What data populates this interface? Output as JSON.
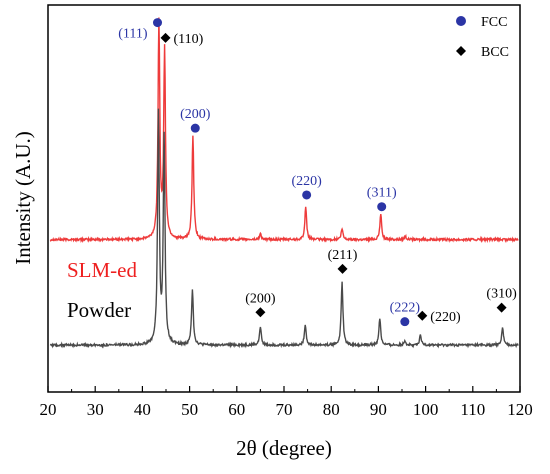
{
  "chart_data": {
    "type": "line",
    "xlabel": "2θ (degree)",
    "ylabel": "Intensity (A.U.)",
    "xlim": [
      20,
      120
    ],
    "x_ticks": [
      20,
      30,
      40,
      50,
      60,
      70,
      80,
      90,
      100,
      110,
      120
    ],
    "y_ticks_shown": false,
    "grid": false,
    "legend": {
      "placement": "top-right",
      "entries": [
        {
          "label": "FCC",
          "marker": "circle",
          "color": "#2b35a5"
        },
        {
          "label": "BCC",
          "marker": "diamond",
          "color": "#000000"
        }
      ]
    },
    "series": [
      {
        "name": "SLM-ed",
        "color": "#ee3b3b",
        "baseline": 1.0,
        "noise": 0.01,
        "peaks": [
          {
            "x": 43.5,
            "height": 1.85
          },
          {
            "x": 44.7,
            "height": 1.6
          },
          {
            "x": 50.7,
            "height": 0.88
          },
          {
            "x": 65.0,
            "height": 0.05
          },
          {
            "x": 74.6,
            "height": 0.27
          },
          {
            "x": 82.3,
            "height": 0.09
          },
          {
            "x": 90.5,
            "height": 0.22
          },
          {
            "x": 95.7,
            "height": 0.03
          }
        ]
      },
      {
        "name": "Powder",
        "color": "#4a4a4a",
        "baseline": 0.1,
        "noise": 0.01,
        "peaks": [
          {
            "x": 43.4,
            "height": 1.95
          },
          {
            "x": 44.6,
            "height": 1.75
          },
          {
            "x": 50.6,
            "height": 0.48
          },
          {
            "x": 65.0,
            "height": 0.16
          },
          {
            "x": 74.5,
            "height": 0.18
          },
          {
            "x": 82.3,
            "height": 0.54
          },
          {
            "x": 90.3,
            "height": 0.23
          },
          {
            "x": 95.6,
            "height": 0.04
          },
          {
            "x": 98.9,
            "height": 0.08
          },
          {
            "x": 116.3,
            "height": 0.15
          }
        ]
      }
    ],
    "annotations": [
      {
        "text": "(111)",
        "marker": "circle",
        "x": 43.2,
        "y": 2.85,
        "side": "left",
        "color": "#2b35a5"
      },
      {
        "text": "(110)",
        "marker": "diamond",
        "x": 44.9,
        "y": 2.72,
        "side": "right",
        "color": "#000000"
      },
      {
        "text": "(200)",
        "marker": "circle",
        "x": 51.2,
        "y": 1.95,
        "side": "above",
        "color": "#2b35a5"
      },
      {
        "text": "(220)",
        "marker": "circle",
        "x": 74.8,
        "y": 1.38,
        "side": "above",
        "color": "#2b35a5"
      },
      {
        "text": "(311)",
        "marker": "circle",
        "x": 90.7,
        "y": 1.28,
        "side": "above",
        "color": "#2b35a5"
      },
      {
        "text": "(200)",
        "marker": "diamond",
        "x": 65.0,
        "y": 0.38,
        "side": "above",
        "color": "#000000"
      },
      {
        "text": "(211)",
        "marker": "diamond",
        "x": 82.4,
        "y": 0.75,
        "side": "above",
        "color": "#000000"
      },
      {
        "text": "(222)",
        "marker": "circle",
        "x": 95.6,
        "y": 0.3,
        "side": "above",
        "color": "#2b35a5"
      },
      {
        "text": "(220)",
        "marker": "diamond",
        "x": 99.3,
        "y": 0.35,
        "side": "right",
        "color": "#000000"
      },
      {
        "text": "(310)",
        "marker": "diamond",
        "x": 116.1,
        "y": 0.42,
        "side": "above",
        "color": "#000000"
      }
    ],
    "series_labels": [
      {
        "text": "SLM-ed",
        "color": "#ee2020"
      },
      {
        "text": "Powder",
        "color": "#000000"
      }
    ]
  }
}
